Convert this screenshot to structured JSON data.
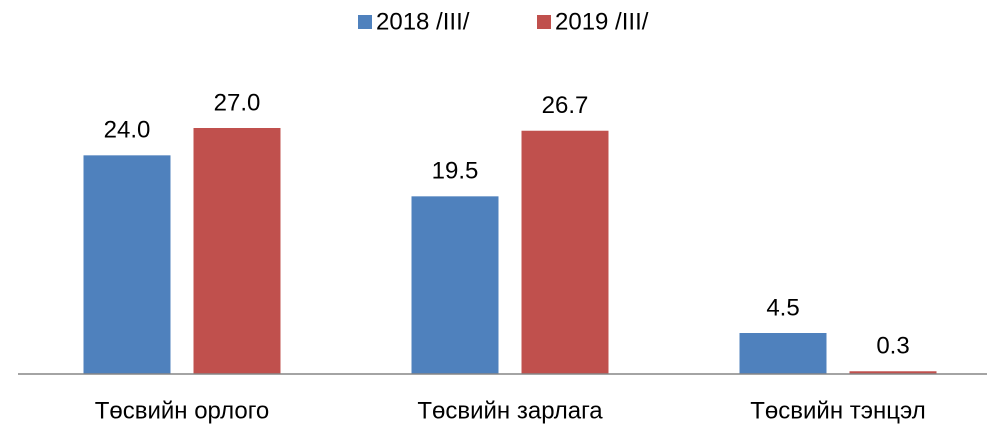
{
  "chart_data": {
    "type": "bar",
    "categories": [
      "Төсвийн орлого",
      "Төсвийн зарлага",
      "Төсвийн тэнцэл"
    ],
    "series": [
      {
        "name": "2018 /III/",
        "color": "#4f81bd",
        "values": [
          24.0,
          19.5,
          4.5
        ],
        "value_labels": [
          "24.0",
          "19.5",
          "4.5"
        ]
      },
      {
        "name": "2019 /III/",
        "color": "#c0504d",
        "values": [
          27.0,
          26.7,
          0.3
        ],
        "value_labels": [
          "27.0",
          "26.7",
          "0.3"
        ]
      }
    ],
    "legend": "top"
  }
}
